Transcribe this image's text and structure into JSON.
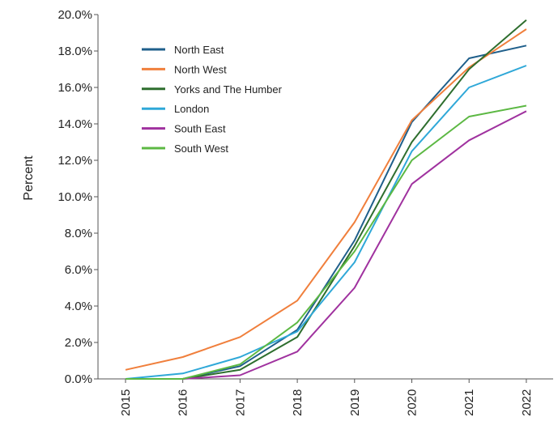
{
  "chart_data": {
    "type": "line",
    "ylabel": "Percent",
    "xlabel": "",
    "title": "",
    "x": [
      "2015",
      "2016",
      "2017",
      "2018",
      "2019",
      "2020",
      "2021",
      "2022"
    ],
    "ylim": [
      0,
      20
    ],
    "yticks": [
      "0.0%",
      "2.0%",
      "4.0%",
      "6.0%",
      "8.0%",
      "10.0%",
      "12.0%",
      "14.0%",
      "16.0%",
      "18.0%",
      "20.0%"
    ],
    "grid": false,
    "legend_position": "top-left",
    "series": [
      {
        "name": "North East",
        "color": "#1f5f8b",
        "values": [
          0.0,
          0.0,
          0.7,
          2.7,
          7.6,
          14.1,
          17.6,
          18.3
        ]
      },
      {
        "name": "North West",
        "color": "#f07f3c",
        "values": [
          0.5,
          1.2,
          2.3,
          4.3,
          8.6,
          14.2,
          17.1,
          19.2
        ]
      },
      {
        "name": "Yorks and The Humber",
        "color": "#2e6e2e",
        "values": [
          0.0,
          0.0,
          0.5,
          2.3,
          7.3,
          13.0,
          17.0,
          19.7
        ]
      },
      {
        "name": "London",
        "color": "#2fa8d8",
        "values": [
          0.0,
          0.3,
          1.2,
          2.6,
          6.4,
          12.5,
          16.0,
          17.2
        ]
      },
      {
        "name": "South East",
        "color": "#a0329f",
        "values": [
          0.0,
          0.0,
          0.2,
          1.5,
          5.0,
          10.7,
          13.1,
          14.7
        ]
      },
      {
        "name": "South West",
        "color": "#5cb843",
        "values": [
          0.0,
          0.0,
          0.8,
          3.1,
          7.0,
          12.0,
          14.4,
          15.0
        ]
      }
    ]
  }
}
